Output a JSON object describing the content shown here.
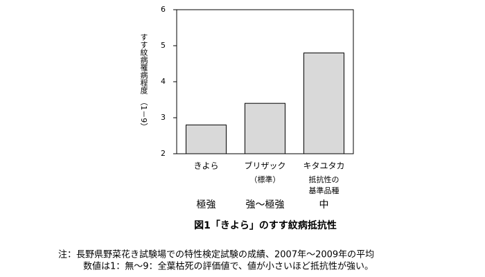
{
  "chart_data": {
    "type": "bar",
    "y_label": "すす紋病罹病程度　（1－9）",
    "categories": [
      "きよら",
      "ブリザック",
      "キタユタカ"
    ],
    "category_notes": [
      [],
      [
        "（標準）"
      ],
      [
        "抵抗性の",
        "基準品種"
      ]
    ],
    "resistance": [
      "極強",
      "強～極強",
      "中"
    ],
    "values": [
      2.8,
      3.4,
      4.8
    ],
    "color": "#d9d9d9",
    "ylim": [
      2,
      6
    ],
    "yticks": [
      2,
      3,
      4,
      5,
      6
    ],
    "grid": false,
    "caption": "図1「きよら」のすす紋病抵抗性"
  },
  "notes": [
    "注：長野県野菜花き試験場での特性検定試験の成績、2007年～2009年の平均",
    "数値は1：無～9：全葉枯死の評価値で、値が小さいほど抵抗性が強い。"
  ]
}
